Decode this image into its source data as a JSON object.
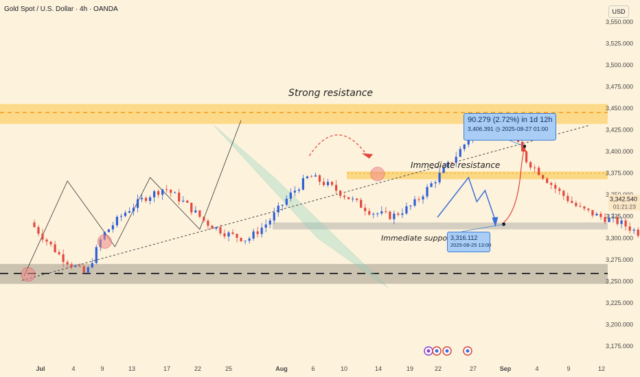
{
  "symbol_title": "Gold Spot / U.S. Dollar · 4h · OANDA",
  "currency_button": "USD",
  "chart_data": {
    "type": "candlestick",
    "title": "Gold Spot / U.S. Dollar · 4h · OANDA",
    "ylim": [
      3165,
      3555
    ],
    "y_ticks": [
      "3,550.000",
      "3,525.000",
      "3,500.000",
      "3,475.000",
      "3,450.000",
      "3,425.000",
      "3,400.000",
      "3,375.000",
      "3,350.000",
      "3,325.000",
      "3,300.000",
      "3,275.000",
      "3,250.000",
      "3,225.000",
      "3,200.000",
      "3,175.000"
    ],
    "x_ticks": [
      "Jul",
      "4",
      "9",
      "13",
      "17",
      "22",
      "25",
      "Aug",
      "6",
      "10",
      "14",
      "19",
      "22",
      "27",
      "Sep",
      "4",
      "9",
      "12"
    ],
    "last_price": "3,342.540",
    "countdown": "01:21:23",
    "annotations": {
      "strong_resistance": "Strong resistance",
      "immediate_resistance": "Immediate resistance",
      "immediate_support": "Immediate support"
    },
    "zones": {
      "strong_resistance": [
        3432,
        3455
      ],
      "immediate_resistance": [
        3368,
        3377
      ],
      "immediate_support": [
        3310,
        3318
      ],
      "major_support": [
        3247,
        3270
      ],
      "resistance_line": 3445,
      "support_line": 3259
    },
    "measure_callout": {
      "line1": "90.279 (2.72%) in 1d 12h",
      "line2_price": "3,406.391",
      "line2_date": "2025-08-27  01:00"
    },
    "support_callout": {
      "price": "3,316.112",
      "date": "2025-08-25 13:00"
    },
    "price_path": [
      [
        -0.5,
        3318
      ],
      [
        1,
        3278
      ],
      [
        2.2,
        3258
      ],
      [
        3,
        3303
      ],
      [
        4,
        3328
      ],
      [
        5,
        3346
      ],
      [
        6,
        3358
      ],
      [
        7,
        3340
      ],
      [
        8,
        3318
      ],
      [
        9,
        3305
      ],
      [
        10,
        3298
      ],
      [
        11,
        3318
      ],
      [
        12,
        3348
      ],
      [
        13,
        3372
      ],
      [
        14,
        3360
      ],
      [
        15,
        3345
      ],
      [
        16,
        3330
      ],
      [
        17,
        3325
      ],
      [
        18,
        3338
      ],
      [
        19,
        3365
      ],
      [
        20,
        3392
      ],
      [
        21,
        3425
      ],
      [
        22,
        3435
      ],
      [
        22.8,
        3420
      ],
      [
        23.5,
        3390
      ],
      [
        24.3,
        3372
      ],
      [
        25,
        3355
      ],
      [
        26,
        3335
      ],
      [
        27,
        3325
      ],
      [
        28,
        3318
      ],
      [
        29,
        3305
      ],
      [
        30,
        3280
      ],
      [
        31,
        3300
      ],
      [
        32,
        3315
      ],
      [
        33,
        3342
      ],
      [
        34,
        3358
      ],
      [
        35,
        3368
      ],
      [
        36,
        3376
      ],
      [
        37,
        3382
      ],
      [
        38,
        3392
      ],
      [
        39,
        3402
      ],
      [
        40,
        3398
      ],
      [
        41,
        3376
      ],
      [
        42,
        3352
      ],
      [
        43,
        3345
      ],
      [
        44,
        3356
      ],
      [
        45,
        3365
      ],
      [
        46,
        3352
      ],
      [
        47,
        3346
      ],
      [
        48,
        3338
      ],
      [
        49,
        3334
      ],
      [
        50,
        3330
      ],
      [
        51,
        3324
      ],
      [
        52,
        3318
      ],
      [
        53,
        3326
      ],
      [
        54,
        3336
      ],
      [
        54.8,
        3343
      ]
    ]
  }
}
